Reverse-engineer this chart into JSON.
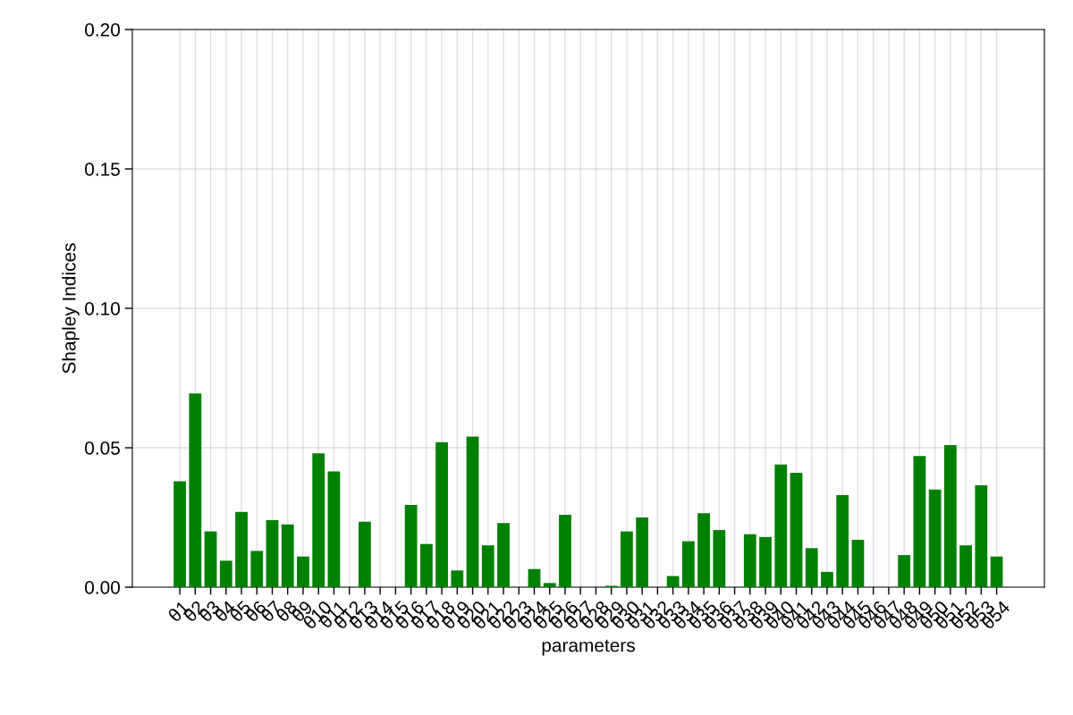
{
  "chart_data": {
    "type": "bar",
    "xlabel": "parameters",
    "ylabel": "Shapley Indices",
    "categories": [
      "θ1",
      "θ2",
      "θ3",
      "θ4",
      "θ5",
      "θ6",
      "θ7",
      "θ8",
      "θ9",
      "θ10",
      "θ11",
      "θ12",
      "θ13",
      "θ14",
      "θ15",
      "θ16",
      "θ17",
      "θ18",
      "θ19",
      "θ20",
      "θ21",
      "θ22",
      "θ23",
      "θ24",
      "θ25",
      "θ26",
      "θ27",
      "θ28",
      "θ29",
      "θ30",
      "θ31",
      "θ32",
      "θ33",
      "θ34",
      "θ35",
      "θ36",
      "θ37",
      "θ38",
      "θ39",
      "θ40",
      "θ41",
      "θ42",
      "θ43",
      "θ44",
      "θ45",
      "θ46",
      "θ47",
      "θ48",
      "θ49",
      "θ50",
      "θ51",
      "θ52",
      "θ53",
      "θ54"
    ],
    "values": [
      0.038,
      0.0695,
      0.02,
      0.0095,
      0.027,
      0.013,
      0.024,
      0.0225,
      0.011,
      0.048,
      0.0415,
      0,
      0.0235,
      0,
      0,
      0.0295,
      0.0155,
      0.052,
      0.006,
      0.054,
      0.015,
      0.023,
      0,
      0.0065,
      0.0015,
      0.026,
      0,
      0,
      0.0005,
      0.02,
      0.025,
      0,
      0.004,
      0.0165,
      0.0265,
      0.0205,
      0,
      0.019,
      0.018,
      0.044,
      0.041,
      0.014,
      0.0055,
      0.033,
      0.017,
      0,
      0,
      0.0115,
      0.047,
      0.035,
      0.051,
      0.015,
      0.0365,
      0.011
    ],
    "color": "#008000",
    "ylim": [
      0,
      0.2
    ],
    "yticks": [
      {
        "value": 0,
        "label": "0.00"
      },
      {
        "value": 0.05,
        "label": "0.05"
      },
      {
        "value": 0.1,
        "label": "0.10"
      },
      {
        "value": 0.15,
        "label": "0.15"
      },
      {
        "value": 0.2,
        "label": "0.20"
      }
    ],
    "grid": true
  }
}
